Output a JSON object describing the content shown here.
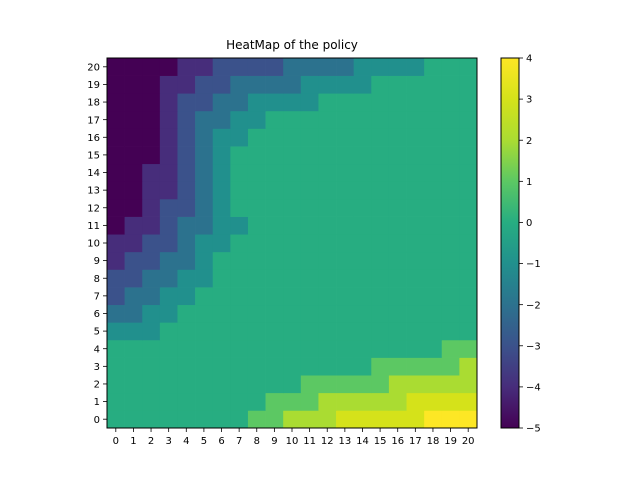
{
  "chart_data": {
    "type": "heatmap",
    "title": "HeatMap of the policy",
    "xlabel": "",
    "ylabel": "",
    "x_tick_labels": [
      "0",
      "1",
      "2",
      "3",
      "4",
      "5",
      "6",
      "7",
      "8",
      "9",
      "10",
      "11",
      "12",
      "13",
      "14",
      "15",
      "16",
      "17",
      "18",
      "19",
      "20"
    ],
    "y_tick_labels": [
      "0",
      "1",
      "2",
      "3",
      "4",
      "5",
      "6",
      "7",
      "8",
      "9",
      "10",
      "11",
      "12",
      "13",
      "14",
      "15",
      "16",
      "17",
      "18",
      "19",
      "20"
    ],
    "y_order": "bottom-to-top",
    "colormap": "viridis",
    "colorbar": {
      "min": -5,
      "max": 4,
      "tick_labels": [
        "−5",
        "−4",
        "−3",
        "−2",
        "−1",
        "0",
        "1",
        "2",
        "3",
        "4"
      ],
      "tick_values": [
        -5,
        -4,
        -3,
        -2,
        -1,
        0,
        1,
        2,
        3,
        4
      ]
    },
    "rows_note": "values[y][x], y = 0 is the bottom row",
    "values": [
      [
        0,
        0,
        0,
        0,
        0,
        0,
        0,
        0,
        1,
        1,
        2,
        2,
        2,
        3,
        3,
        3,
        3,
        3,
        4,
        4,
        4
      ],
      [
        0,
        0,
        0,
        0,
        0,
        0,
        0,
        0,
        0,
        1,
        1,
        1,
        2,
        2,
        2,
        2,
        2,
        3,
        3,
        3,
        3
      ],
      [
        0,
        0,
        0,
        0,
        0,
        0,
        0,
        0,
        0,
        0,
        0,
        1,
        1,
        1,
        1,
        1,
        2,
        2,
        2,
        2,
        2
      ],
      [
        0,
        0,
        0,
        0,
        0,
        0,
        0,
        0,
        0,
        0,
        0,
        0,
        0,
        0,
        0,
        1,
        1,
        1,
        1,
        1,
        2
      ],
      [
        0,
        0,
        0,
        0,
        0,
        0,
        0,
        0,
        0,
        0,
        0,
        0,
        0,
        0,
        0,
        0,
        0,
        0,
        0,
        1,
        1
      ],
      [
        -1,
        -1,
        -1,
        0,
        0,
        0,
        0,
        0,
        0,
        0,
        0,
        0,
        0,
        0,
        0,
        0,
        0,
        0,
        0,
        0,
        0
      ],
      [
        -2,
        -2,
        -1,
        -1,
        0,
        0,
        0,
        0,
        0,
        0,
        0,
        0,
        0,
        0,
        0,
        0,
        0,
        0,
        0,
        0,
        0
      ],
      [
        -3,
        -2,
        -2,
        -1,
        -1,
        0,
        0,
        0,
        0,
        0,
        0,
        0,
        0,
        0,
        0,
        0,
        0,
        0,
        0,
        0,
        0
      ],
      [
        -3,
        -3,
        -2,
        -2,
        -1,
        -1,
        0,
        0,
        0,
        0,
        0,
        0,
        0,
        0,
        0,
        0,
        0,
        0,
        0,
        0,
        0
      ],
      [
        -4,
        -3,
        -3,
        -2,
        -2,
        -1,
        0,
        0,
        0,
        0,
        0,
        0,
        0,
        0,
        0,
        0,
        0,
        0,
        0,
        0,
        0
      ],
      [
        -4,
        -4,
        -3,
        -3,
        -2,
        -1,
        -1,
        0,
        0,
        0,
        0,
        0,
        0,
        0,
        0,
        0,
        0,
        0,
        0,
        0,
        0
      ],
      [
        -5,
        -4,
        -4,
        -3,
        -2,
        -2,
        -1,
        -1,
        0,
        0,
        0,
        0,
        0,
        0,
        0,
        0,
        0,
        0,
        0,
        0,
        0
      ],
      [
        -5,
        -5,
        -4,
        -3,
        -3,
        -2,
        -1,
        0,
        0,
        0,
        0,
        0,
        0,
        0,
        0,
        0,
        0,
        0,
        0,
        0,
        0
      ],
      [
        -5,
        -5,
        -4,
        -4,
        -3,
        -2,
        -1,
        0,
        0,
        0,
        0,
        0,
        0,
        0,
        0,
        0,
        0,
        0,
        0,
        0,
        0
      ],
      [
        -5,
        -5,
        -4,
        -4,
        -3,
        -2,
        -1,
        0,
        0,
        0,
        0,
        0,
        0,
        0,
        0,
        0,
        0,
        0,
        0,
        0,
        0
      ],
      [
        -5,
        -5,
        -5,
        -4,
        -3,
        -2,
        -1,
        0,
        0,
        0,
        0,
        0,
        0,
        0,
        0,
        0,
        0,
        0,
        0,
        0,
        0
      ],
      [
        -5,
        -5,
        -5,
        -4,
        -3,
        -2,
        -1,
        -1,
        0,
        0,
        0,
        0,
        0,
        0,
        0,
        0,
        0,
        0,
        0,
        0,
        0
      ],
      [
        -5,
        -5,
        -5,
        -4,
        -3,
        -2,
        -2,
        -1,
        -1,
        0,
        0,
        0,
        0,
        0,
        0,
        0,
        0,
        0,
        0,
        0,
        0
      ],
      [
        -5,
        -5,
        -5,
        -4,
        -3,
        -3,
        -2,
        -2,
        -1,
        -1,
        -1,
        -1,
        0,
        0,
        0,
        0,
        0,
        0,
        0,
        0,
        0
      ],
      [
        -5,
        -5,
        -5,
        -4,
        -4,
        -3,
        -3,
        -2,
        -2,
        -2,
        -2,
        -1,
        -1,
        -1,
        -1,
        0,
        0,
        0,
        0,
        0,
        0
      ],
      [
        -5,
        -5,
        -5,
        -5,
        -4,
        -4,
        -3,
        -3,
        -3,
        -3,
        -2,
        -2,
        -2,
        -2,
        -1,
        -1,
        -1,
        -1,
        0,
        0,
        0
      ]
    ]
  }
}
